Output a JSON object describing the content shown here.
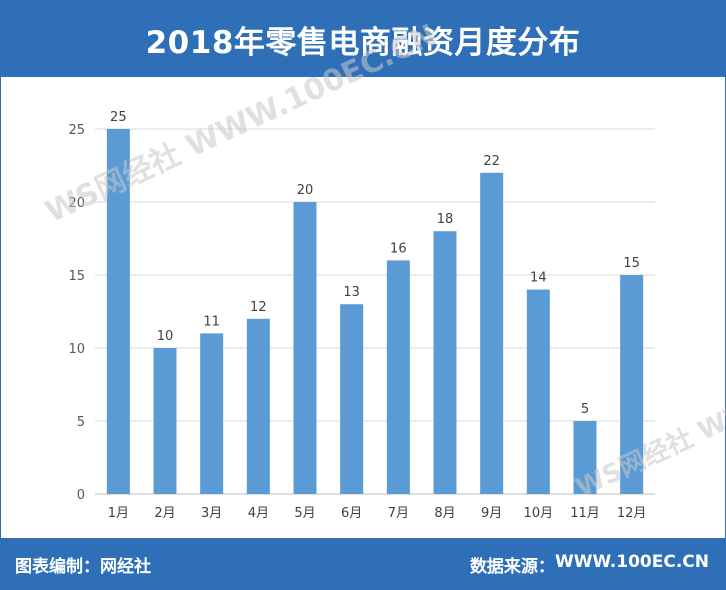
{
  "header": {
    "title": "2018年零售电商融资月度分布"
  },
  "footer": {
    "left_label": "图表编制：",
    "left_value": "网经社",
    "right_label": "数据来源：",
    "right_value": "WWW.100EC.CN"
  },
  "watermark": {
    "brand": "WS网经社",
    "url": "WWW.100EC.CN"
  },
  "colors": {
    "brand": "#2e6fb8",
    "bar": "#5b9bd5",
    "grid": "#d9d9d9"
  },
  "chart_data": {
    "type": "bar",
    "title": "2018年零售电商融资月度分布",
    "categories": [
      "1月",
      "2月",
      "3月",
      "4月",
      "5月",
      "6月",
      "7月",
      "8月",
      "9月",
      "10月",
      "11月",
      "12月"
    ],
    "values": [
      25,
      10,
      11,
      12,
      20,
      13,
      16,
      18,
      22,
      14,
      5,
      15
    ],
    "ylim": [
      0,
      25
    ],
    "yticks": [
      0,
      5,
      10,
      15,
      20,
      25
    ],
    "grid": true,
    "data_labels": true
  }
}
